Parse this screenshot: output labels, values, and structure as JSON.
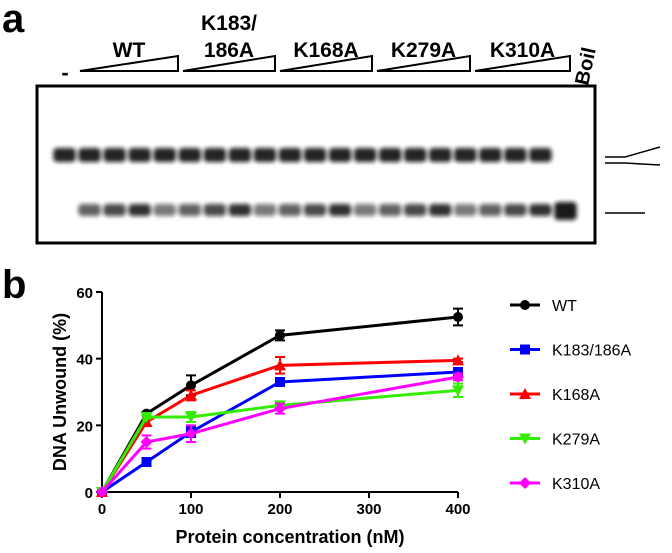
{
  "panel_a": {
    "label": "a",
    "gel": {
      "lanes_first": "-",
      "groups": [
        {
          "label_lines": [
            "WT"
          ]
        },
        {
          "label_lines": [
            "K183/",
            "186A"
          ]
        },
        {
          "label_lines": [
            "K168A"
          ]
        },
        {
          "label_lines": [
            "K279A"
          ]
        },
        {
          "label_lines": [
            "K310A"
          ]
        }
      ],
      "last": "Boil"
    }
  },
  "panel_b": {
    "label": "b"
  },
  "chart_data": {
    "type": "line",
    "xlabel": "Protein concentration (nM)",
    "ylabel": "DNA Unwound (%)",
    "x": [
      0,
      50,
      100,
      200,
      400
    ],
    "xlim": [
      0,
      400
    ],
    "xticks": [
      0,
      100,
      200,
      300,
      400
    ],
    "ylim": [
      0,
      60
    ],
    "yticks": [
      0,
      20,
      40,
      60
    ],
    "series": [
      {
        "name": "WT",
        "color": "#000000",
        "marker": "circle",
        "values": [
          0,
          23.5,
          32,
          47,
          52.5
        ],
        "errors": [
          0,
          0.5,
          3,
          1.5,
          2.5
        ]
      },
      {
        "name": "K183/186A",
        "color": "#0000ff",
        "marker": "square",
        "values": [
          0,
          9,
          18,
          33,
          36
        ],
        "errors": [
          0,
          1,
          1.5,
          0.5,
          0.5
        ]
      },
      {
        "name": "K168A",
        "color": "#ff0000",
        "marker": "triangle-up",
        "values": [
          0,
          21,
          29,
          38,
          39.5
        ],
        "errors": [
          0,
          1,
          1.5,
          2.5,
          0.5
        ]
      },
      {
        "name": "K279A",
        "color": "#33ee00",
        "marker": "triangle-down",
        "values": [
          0,
          22.5,
          22.5,
          26,
          30.5
        ],
        "errors": [
          0,
          0.5,
          1.5,
          1,
          2
        ]
      },
      {
        "name": "K310A",
        "color": "#ff00ff",
        "marker": "diamond",
        "values": [
          0,
          15,
          17.5,
          25,
          34.5
        ],
        "errors": [
          0,
          2,
          2.5,
          1.5,
          1
        ]
      }
    ]
  }
}
